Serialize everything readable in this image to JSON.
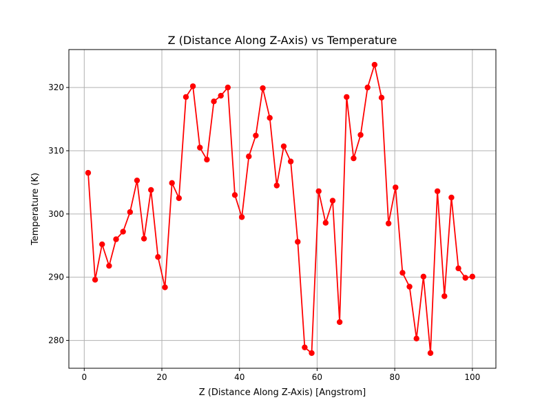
{
  "chart_data": {
    "type": "line",
    "title": "Z (Distance Along Z-Axis) vs Temperature",
    "xlabel": "Z (Distance Along Z-Axis) [Angstrom]",
    "ylabel": "Temperature (K)",
    "xlim": [
      -3.96,
      106.06
    ],
    "ylim": [
      275.6,
      326.0
    ],
    "grid": true,
    "xticks": [
      0,
      20,
      40,
      60,
      80,
      100
    ],
    "yticks": [
      280,
      290,
      300,
      310,
      320
    ],
    "series": [
      {
        "color": "#ff0000",
        "marker": "circle",
        "x": [
          1.0,
          2.8,
          4.6,
          6.4,
          8.2,
          10.0,
          11.8,
          13.6,
          15.4,
          17.2,
          19.0,
          20.8,
          22.6,
          24.4,
          26.2,
          28.0,
          29.8,
          31.6,
          33.4,
          35.2,
          37.0,
          38.8,
          40.6,
          42.4,
          44.2,
          46.0,
          47.8,
          49.6,
          51.4,
          53.2,
          55.0,
          56.8,
          58.6,
          60.4,
          62.2,
          64.0,
          65.8,
          67.6,
          69.4,
          71.2,
          73.0,
          74.8,
          76.6,
          78.4,
          80.2,
          82.0,
          83.8,
          85.6,
          87.4,
          89.2,
          91.0,
          92.8,
          94.6,
          96.4,
          98.2,
          100.0
        ],
        "y": [
          306.5,
          289.6,
          295.2,
          291.8,
          296.0,
          297.2,
          300.3,
          305.3,
          296.1,
          303.8,
          293.2,
          288.4,
          304.9,
          302.5,
          318.5,
          320.2,
          310.5,
          308.6,
          317.8,
          318.7,
          320.0,
          303.0,
          299.5,
          309.1,
          312.4,
          319.9,
          315.2,
          304.5,
          310.7,
          308.3,
          295.6,
          278.9,
          278.0,
          303.6,
          298.6,
          302.1,
          282.9,
          318.5,
          308.8,
          312.5,
          320.0,
          323.6,
          318.4,
          298.5,
          304.2,
          290.7,
          288.5,
          280.3,
          290.1,
          278.0,
          303.6,
          287.0,
          302.6,
          291.4,
          289.9,
          290.1
        ]
      }
    ]
  }
}
